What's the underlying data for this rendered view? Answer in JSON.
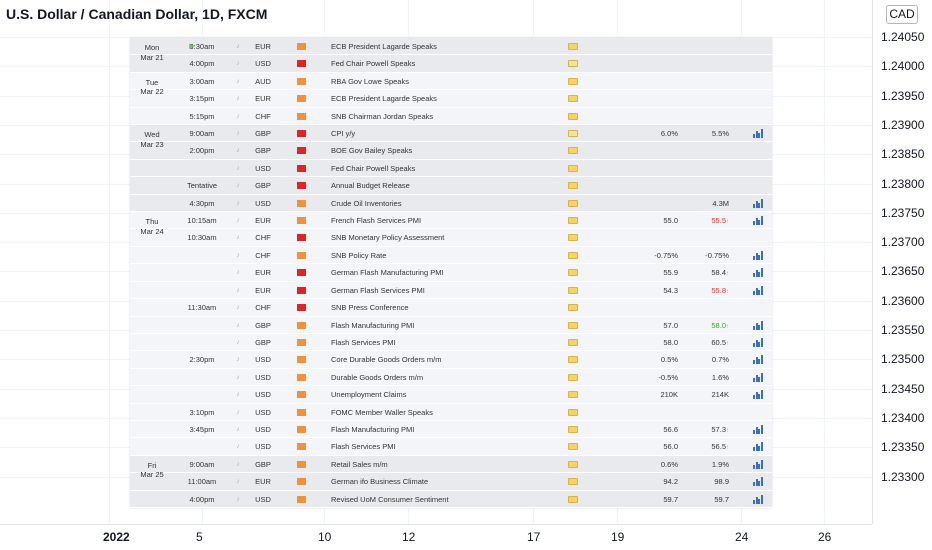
{
  "chart": {
    "title": "U.S. Dollar / Canadian Dollar, 1D, FXCM",
    "currency": "CAD",
    "price_labels": [
      "1.24050",
      "1.24000",
      "1.23950",
      "1.23900",
      "1.23850",
      "1.23800",
      "1.23750",
      "1.23700",
      "1.23650",
      "1.23600",
      "1.23550",
      "1.23500",
      "1.23450",
      "1.23400",
      "1.23350",
      "1.23300"
    ],
    "time_labels": [
      {
        "text": "2022",
        "bold": true
      },
      {
        "text": "5",
        "bold": false
      },
      {
        "text": "10",
        "bold": false
      },
      {
        "text": "12",
        "bold": false
      },
      {
        "text": "17",
        "bold": false
      },
      {
        "text": "19",
        "bold": false
      },
      {
        "text": "24",
        "bold": false
      },
      {
        "text": "26",
        "bold": false
      }
    ]
  },
  "colors": {
    "importance_high": "#e02424",
    "importance_medium": "#f0923a",
    "forecast_up_arrow": "#f08a24",
    "actual_red": "#e2332f",
    "actual_green": "#3a9d2a"
  },
  "calendar": {
    "days": [
      {
        "weekday": "Mon",
        "date": "Mar 21"
      },
      {
        "weekday": "Tue",
        "date": "Mar 22"
      },
      {
        "weekday": "Wed",
        "date": "Mar 23"
      },
      {
        "weekday": "Thu",
        "date": "Mar 24"
      },
      {
        "weekday": "Fri",
        "date": "Mar 25"
      }
    ],
    "rows": [
      {
        "day": 0,
        "time": "9:30am",
        "tick": true,
        "cur": "EUR",
        "imp": "medium",
        "event": "ECB President Lagarde Speaks",
        "doc": false,
        "actual": "",
        "forecast": "",
        "arrow": false,
        "actual_style": "",
        "chart": false
      },
      {
        "day": 0,
        "time": "4:00pm",
        "tick": false,
        "cur": "USD",
        "imp": "high",
        "event": "Fed Chair Powell Speaks",
        "doc": true,
        "actual": "",
        "forecast": "",
        "arrow": false,
        "actual_style": "",
        "chart": false
      },
      {
        "day": 1,
        "time": "3:00am",
        "tick": false,
        "cur": "AUD",
        "imp": "medium",
        "event": "RBA Gov Lowe Speaks",
        "doc": false,
        "actual": "",
        "forecast": "",
        "arrow": false,
        "actual_style": "",
        "chart": false
      },
      {
        "day": 1,
        "time": "3:15pm",
        "tick": false,
        "cur": "EUR",
        "imp": "medium",
        "event": "ECB President Lagarde Speaks",
        "doc": false,
        "actual": "",
        "forecast": "",
        "arrow": false,
        "actual_style": "",
        "chart": false
      },
      {
        "day": 1,
        "time": "5:15pm",
        "tick": false,
        "cur": "CHF",
        "imp": "medium",
        "event": "SNB Chairman Jordan Speaks",
        "doc": false,
        "actual": "",
        "forecast": "",
        "arrow": false,
        "actual_style": "",
        "chart": false
      },
      {
        "day": 2,
        "time": "9:00am",
        "tick": false,
        "cur": "GBP",
        "imp": "high",
        "event": "CPI y/y",
        "doc": true,
        "actual": "6.0%",
        "forecast": "5.5%",
        "arrow": false,
        "actual_style": "",
        "chart": true
      },
      {
        "day": 2,
        "time": "2:00pm",
        "tick": false,
        "cur": "GBP",
        "imp": "high",
        "event": "BOE Gov Bailey Speaks",
        "doc": false,
        "actual": "",
        "forecast": "",
        "arrow": false,
        "actual_style": "",
        "chart": false
      },
      {
        "day": 2,
        "time": "",
        "tick": false,
        "cur": "USD",
        "imp": "high",
        "event": "Fed Chair Powell Speaks",
        "doc": false,
        "actual": "",
        "forecast": "",
        "arrow": false,
        "actual_style": "",
        "chart": false
      },
      {
        "day": 2,
        "time": "Tentative",
        "tick": false,
        "cur": "GBP",
        "imp": "high",
        "event": "Annual Budget Release",
        "doc": false,
        "actual": "",
        "forecast": "",
        "arrow": false,
        "actual_style": "",
        "chart": false
      },
      {
        "day": 2,
        "time": "4:30pm",
        "tick": false,
        "cur": "USD",
        "imp": "medium",
        "event": "Crude Oil Inventories",
        "doc": false,
        "actual": "",
        "forecast": "4.3M",
        "arrow": false,
        "actual_style": "",
        "chart": true
      },
      {
        "day": 3,
        "time": "10:15am",
        "tick": false,
        "cur": "EUR",
        "imp": "medium",
        "event": "French Flash Services PMI",
        "doc": false,
        "actual": "55.0",
        "forecast": "55.5",
        "arrow": true,
        "actual_style": "red",
        "chart": true
      },
      {
        "day": 3,
        "time": "10:30am",
        "tick": false,
        "cur": "CHF",
        "imp": "high",
        "event": "SNB Monetary Policy Assessment",
        "doc": false,
        "actual": "",
        "forecast": "",
        "arrow": false,
        "actual_style": "",
        "chart": false
      },
      {
        "day": 3,
        "time": "",
        "tick": false,
        "cur": "CHF",
        "imp": "medium",
        "event": "SNB Policy Rate",
        "doc": false,
        "actual": "-0.75%",
        "forecast": "-0.75%",
        "arrow": false,
        "actual_style": "",
        "chart": true
      },
      {
        "day": 3,
        "time": "",
        "tick": false,
        "cur": "EUR",
        "imp": "high",
        "event": "German Flash Manufacturing PMI",
        "doc": false,
        "actual": "55.9",
        "forecast": "58.4",
        "arrow": true,
        "actual_style": "",
        "chart": true
      },
      {
        "day": 3,
        "time": "",
        "tick": false,
        "cur": "EUR",
        "imp": "high",
        "event": "German Flash Services PMI",
        "doc": false,
        "actual": "54.3",
        "forecast": "55.8",
        "arrow": true,
        "actual_style": "red",
        "chart": true
      },
      {
        "day": 3,
        "time": "11:30am",
        "tick": false,
        "cur": "CHF",
        "imp": "high",
        "event": "SNB Press Conference",
        "doc": false,
        "actual": "",
        "forecast": "",
        "arrow": false,
        "actual_style": "",
        "chart": false
      },
      {
        "day": 3,
        "time": "",
        "tick": false,
        "cur": "GBP",
        "imp": "medium",
        "event": "Flash Manufacturing PMI",
        "doc": false,
        "actual": "57.0",
        "forecast": "58.0",
        "arrow": true,
        "actual_style": "green",
        "chart": true
      },
      {
        "day": 3,
        "time": "",
        "tick": false,
        "cur": "GBP",
        "imp": "medium",
        "event": "Flash Services PMI",
        "doc": false,
        "actual": "58.0",
        "forecast": "60.5",
        "arrow": true,
        "actual_style": "",
        "chart": true
      },
      {
        "day": 3,
        "time": "2:30pm",
        "tick": false,
        "cur": "USD",
        "imp": "medium",
        "event": "Core Durable Goods Orders m/m",
        "doc": false,
        "actual": "0.5%",
        "forecast": "0.7%",
        "arrow": false,
        "actual_style": "",
        "chart": true
      },
      {
        "day": 3,
        "time": "",
        "tick": false,
        "cur": "USD",
        "imp": "medium",
        "event": "Durable Goods Orders m/m",
        "doc": false,
        "actual": "-0.5%",
        "forecast": "1.6%",
        "arrow": false,
        "actual_style": "",
        "chart": true
      },
      {
        "day": 3,
        "time": "",
        "tick": false,
        "cur": "USD",
        "imp": "medium",
        "event": "Unemployment Claims",
        "doc": false,
        "actual": "210K",
        "forecast": "214K",
        "arrow": false,
        "actual_style": "",
        "chart": true
      },
      {
        "day": 3,
        "time": "3:10pm",
        "tick": false,
        "cur": "USD",
        "imp": "medium",
        "event": "FOMC Member Waller Speaks",
        "doc": false,
        "actual": "",
        "forecast": "",
        "arrow": false,
        "actual_style": "",
        "chart": false
      },
      {
        "day": 3,
        "time": "3:45pm",
        "tick": false,
        "cur": "USD",
        "imp": "medium",
        "event": "Flash Manufacturing PMI",
        "doc": false,
        "actual": "56.6",
        "forecast": "57.3",
        "arrow": true,
        "actual_style": "",
        "chart": true
      },
      {
        "day": 3,
        "time": "",
        "tick": false,
        "cur": "USD",
        "imp": "medium",
        "event": "Flash Services PMI",
        "doc": false,
        "actual": "56.0",
        "forecast": "56.5",
        "arrow": true,
        "actual_style": "",
        "chart": true
      },
      {
        "day": 4,
        "time": "9:00am",
        "tick": false,
        "cur": "GBP",
        "imp": "medium",
        "event": "Retail Sales m/m",
        "doc": false,
        "actual": "0.6%",
        "forecast": "1.9%",
        "arrow": false,
        "actual_style": "",
        "chart": true
      },
      {
        "day": 4,
        "time": "11:00am",
        "tick": false,
        "cur": "EUR",
        "imp": "medium",
        "event": "German ifo Business Climate",
        "doc": false,
        "actual": "94.2",
        "forecast": "98.9",
        "arrow": false,
        "actual_style": "",
        "chart": true
      },
      {
        "day": 4,
        "time": "4:00pm",
        "tick": false,
        "cur": "USD",
        "imp": "medium",
        "event": "Revised UoM Consumer Sentiment",
        "doc": false,
        "actual": "59.7",
        "forecast": "59.7",
        "arrow": false,
        "actual_style": "",
        "chart": true
      }
    ]
  }
}
